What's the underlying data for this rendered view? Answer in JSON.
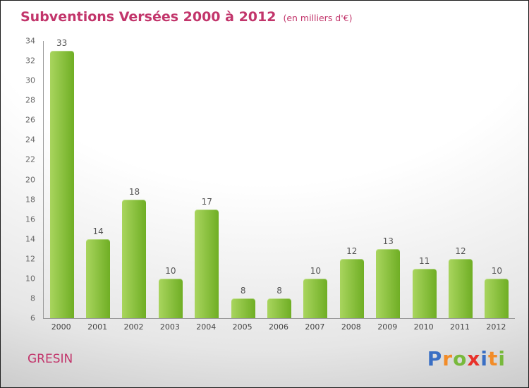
{
  "header": {
    "title": "Subventions Versées 2000 à 2012",
    "subtitle": "(en milliers d'€)"
  },
  "footer": {
    "org": "GRESIN"
  },
  "logo": {
    "name": "Proxiti",
    "letters": [
      {
        "ch": "P",
        "color": "#3a6fc4"
      },
      {
        "ch": "r",
        "color": "#f28c28"
      },
      {
        "ch": "o",
        "color": "#78b93c"
      },
      {
        "ch": "x",
        "color": "#e8312a"
      },
      {
        "ch": "i",
        "color": "#3a6fc4"
      },
      {
        "ch": "t",
        "color": "#f28c28"
      },
      {
        "ch": "i",
        "color": "#78b93c"
      }
    ]
  },
  "colors": {
    "accent": "#c2356b",
    "bar_light": "#a9d55e",
    "bar_dark": "#6fae24",
    "axis": "#9a9a9a",
    "tick_text": "#666666",
    "value_text": "#555555"
  },
  "chart_data": {
    "type": "bar",
    "title": "Subventions Versées 2000 à 2012",
    "subtitle": "(en milliers d'€)",
    "categories": [
      "2000",
      "2001",
      "2002",
      "2003",
      "2004",
      "2005",
      "2006",
      "2007",
      "2008",
      "2009",
      "2010",
      "2011",
      "2012"
    ],
    "values": [
      33,
      14,
      18,
      10,
      17,
      8,
      8,
      10,
      12,
      13,
      11,
      12,
      10
    ],
    "xlabel": "",
    "ylabel": "",
    "ylim": [
      6,
      34
    ],
    "ytick_step": 2,
    "grid": false,
    "legend": false
  }
}
